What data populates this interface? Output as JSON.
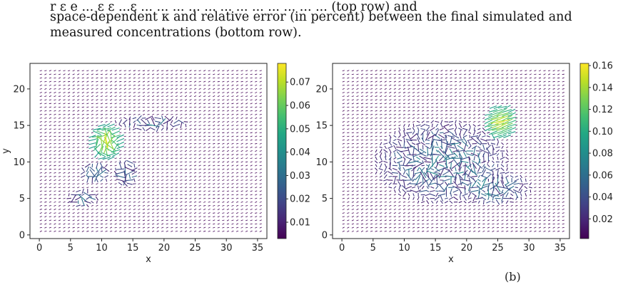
{
  "caption": {
    "line1": "r ε e ... ε ε  ...ε ... ... ... ... ... ... ... ... ... ... ... ... (top row) and",
    "line2": "space-dependent κ and relative error (in percent) between the final simulated and",
    "line3": "measured concentrations (bottom row).",
    "bottom_fragment": "(b)"
  },
  "chart_data": [
    {
      "type": "quiver",
      "xlabel": "x",
      "ylabel": "y",
      "xlim": [
        -1.5,
        36.5
      ],
      "ylim": [
        -0.5,
        23.5
      ],
      "xticks": [
        0,
        5,
        10,
        15,
        20,
        25,
        30,
        35
      ],
      "yticks": [
        0,
        5,
        10,
        15,
        20
      ],
      "colorbar": {
        "ticks": [
          0.01,
          0.02,
          0.03,
          0.04,
          0.05,
          0.06,
          0.07
        ],
        "range": [
          0.003,
          0.078
        ],
        "colormap": "viridis"
      },
      "active_regions": [
        {
          "cx": 18.0,
          "cy": 15.3,
          "rx": 6.0,
          "ry": 1.0
        },
        {
          "cx": 10.5,
          "cy": 12.5,
          "rx": 2.0,
          "ry": 2.0
        },
        {
          "cx": 9.0,
          "cy": 8.5,
          "rx": 2.5,
          "ry": 1.5
        },
        {
          "cx": 7.0,
          "cy": 5.0,
          "rx": 2.5,
          "ry": 1.2
        },
        {
          "cx": 14.0,
          "cy": 8.5,
          "rx": 2.0,
          "ry": 2.0
        }
      ],
      "peak": {
        "x": 10.8,
        "y": 12.8,
        "value": 0.076
      }
    },
    {
      "type": "quiver",
      "xlabel": "x",
      "ylabel": "",
      "xlim": [
        -1.5,
        36.5
      ],
      "ylim": [
        -0.5,
        23.5
      ],
      "xticks": [
        0,
        5,
        10,
        15,
        20,
        25,
        30,
        35
      ],
      "yticks": [
        0,
        5,
        10,
        15,
        20
      ],
      "colorbar": {
        "ticks": [
          0.02,
          0.04,
          0.06,
          0.08,
          0.1,
          0.12,
          0.14,
          0.16
        ],
        "range": [
          0.002,
          0.162
        ],
        "colormap": "viridis"
      },
      "active_regions": [
        {
          "cx": 16.0,
          "cy": 10.0,
          "rx": 11.0,
          "ry": 6.0
        },
        {
          "cx": 24.0,
          "cy": 6.5,
          "rx": 6.5,
          "ry": 2.5
        }
      ],
      "peak": {
        "x": 25.5,
        "y": 15.5,
        "value": 0.16
      }
    }
  ]
}
